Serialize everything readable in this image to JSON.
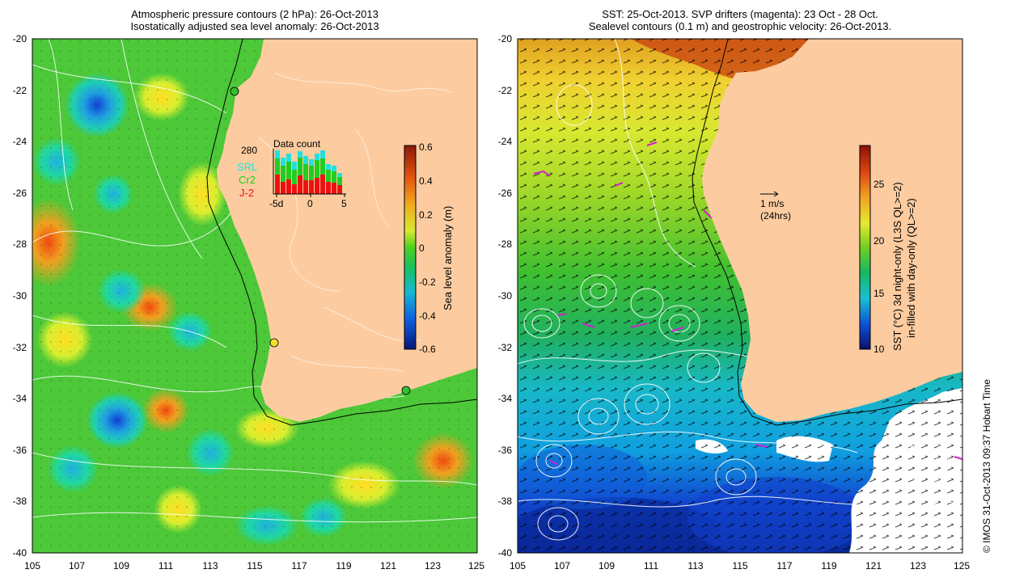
{
  "left_panel": {
    "title_line1": "Atmospheric pressure contours (2 hPa): 26-Oct-2013",
    "title_line2": "Isostatically adjusted sea level anomaly: 26-Oct-2013",
    "x_ticks": [
      "105",
      "107",
      "109",
      "111",
      "113",
      "115",
      "117",
      "119",
      "121",
      "123",
      "125"
    ],
    "y_ticks": [
      "-20",
      "-22",
      "-24",
      "-26",
      "-28",
      "-30",
      "-32",
      "-34",
      "-36",
      "-38",
      "-40"
    ],
    "colorbar": {
      "label": "Sea level anomaly (m)",
      "ticks": [
        "0.6",
        "0.4",
        "0.2",
        "0",
        "-0.2",
        "-0.4",
        "-0.6"
      ]
    },
    "inset": {
      "title": "Data count",
      "max_label": "280",
      "legend": [
        {
          "label": "SRL",
          "color": "#22e0e0"
        },
        {
          "label": "Cr2",
          "color": "#22cc22"
        },
        {
          "label": "J-2",
          "color": "#ee1111"
        }
      ],
      "x_ticks": [
        "-5d",
        "0",
        "5"
      ]
    }
  },
  "right_panel": {
    "title_line1": "SST: 25-Oct-2013. SVP drifters (magenta): 23 Oct - 28 Oct.",
    "title_line2": "Sealevel contours (0.1 m) and geostrophic velocity: 26-Oct-2013.",
    "x_ticks": [
      "105",
      "107",
      "109",
      "111",
      "113",
      "115",
      "117",
      "119",
      "121",
      "123",
      "125"
    ],
    "y_ticks": [
      "-20",
      "-22",
      "-24",
      "-26",
      "-28",
      "-30",
      "-32",
      "-34",
      "-36",
      "-38",
      "-40"
    ],
    "colorbar": {
      "label_line1": "SST (°C) 3d night-only (L3S QL>=2)",
      "label_line2": "in-filled with day-only (QL>=2)",
      "ticks": [
        "25",
        "20",
        "15",
        "10"
      ]
    },
    "velocity_scale_label": "1 m/s",
    "velocity_scale_sublabel": "(24hrs)"
  },
  "credit": "© IMOS 31-Oct-2013 09:37 Hobart Time"
}
